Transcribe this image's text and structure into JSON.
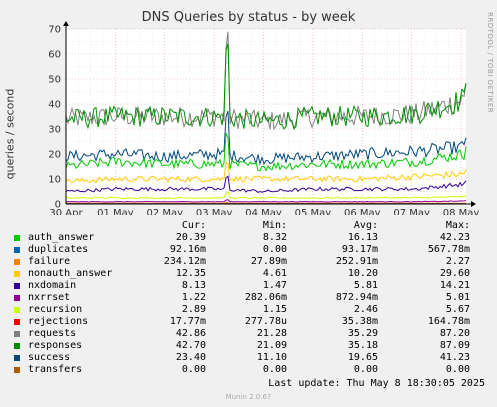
{
  "chart_data": {
    "type": "line",
    "title": "DNS Queries by status - by week",
    "ylabel": "queries / second",
    "ylim": [
      0,
      70
    ],
    "yticks": [
      "0",
      "10",
      "20",
      "30",
      "40",
      "50",
      "60",
      "70"
    ],
    "x_ticks": [
      "30 Apr",
      "01 May",
      "02 May",
      "03 May",
      "04 May",
      "05 May",
      "06 May",
      "07 May",
      "08 May"
    ],
    "grid": true,
    "series": [
      {
        "name": "auth_answer",
        "color": "#00cc00",
        "cur": "20.39",
        "min": "8.32",
        "avg": "16.13",
        "max": "42.23",
        "base": [
          15,
          17,
          16,
          16,
          15,
          16,
          16,
          17,
          20
        ]
      },
      {
        "name": "duplicates",
        "color": "#0066b3",
        "cur": "92.16m",
        "min": "0.00",
        "avg": "93.17m",
        "max": "567.78m",
        "base": [
          0.1,
          0.1,
          0.1,
          0.1,
          0.1,
          0.1,
          0.1,
          0.1,
          0.1
        ]
      },
      {
        "name": "failure",
        "color": "#ff8000",
        "cur": "234.12m",
        "min": "27.89m",
        "avg": "252.91m",
        "max": "2.27",
        "base": [
          0.3,
          0.3,
          0.3,
          0.3,
          0.3,
          0.3,
          0.3,
          0.3,
          0.3
        ]
      },
      {
        "name": "nonauth_answer",
        "color": "#ffcc00",
        "cur": "12.35",
        "min": "4.61",
        "avg": "10.20",
        "max": "29.60",
        "base": [
          9,
          10,
          10,
          10,
          10,
          10,
          10,
          11,
          12
        ]
      },
      {
        "name": "nxdomain",
        "color": "#330099",
        "cur": "8.13",
        "min": "1.47",
        "avg": "5.81",
        "max": "14.21",
        "base": [
          5,
          6,
          6,
          6,
          5,
          6,
          6,
          6,
          8
        ]
      },
      {
        "name": "nxrrset",
        "color": "#990099",
        "cur": "1.22",
        "min": "282.06m",
        "avg": "872.94m",
        "max": "5.01",
        "base": [
          0.9,
          0.9,
          0.9,
          0.9,
          0.9,
          0.9,
          0.9,
          0.9,
          1.2
        ]
      },
      {
        "name": "recursion",
        "color": "#ccff00",
        "cur": "2.89",
        "min": "1.15",
        "avg": "2.46",
        "max": "5.67",
        "base": [
          2.4,
          2.5,
          2.4,
          2.5,
          2.4,
          2.4,
          2.5,
          2.5,
          2.9
        ]
      },
      {
        "name": "rejections",
        "color": "#ff0000",
        "cur": "17.77m",
        "min": "277.78u",
        "avg": "35.38m",
        "max": "164.78m",
        "base": [
          0.04,
          0.04,
          0.04,
          0.04,
          0.04,
          0.04,
          0.04,
          0.04,
          0.04
        ]
      },
      {
        "name": "requests",
        "color": "#808080",
        "cur": "42.86",
        "min": "21.28",
        "avg": "35.29",
        "max": "87.20",
        "base": [
          34,
          35,
          35,
          35,
          33,
          35,
          35,
          36,
          42
        ]
      },
      {
        "name": "responses",
        "color": "#008f00",
        "cur": "42.70",
        "min": "21.09",
        "avg": "35.18",
        "max": "87.09",
        "base": [
          34,
          35,
          35,
          35,
          33,
          35,
          35,
          36,
          42
        ]
      },
      {
        "name": "success",
        "color": "#00487d",
        "cur": "23.40",
        "min": "11.10",
        "avg": "19.65",
        "max": "41.23",
        "base": [
          19,
          20,
          19,
          20,
          18,
          19,
          20,
          21,
          23
        ]
      },
      {
        "name": "transfers",
        "color": "#b35a00",
        "cur": "0.00",
        "min": "0.00",
        "avg": "0.00",
        "max": "0.00",
        "base": [
          0,
          0,
          0,
          0,
          0,
          0,
          0,
          0,
          0
        ]
      }
    ]
  },
  "legend_headers": {
    "cur": "Cur:",
    "min": "Min:",
    "avg": "Avg:",
    "max": "Max:"
  },
  "side_text": "RRDTOOL / TOBI OETIKER",
  "last_update": "Last update: Thu May  8 18:30:05 2025",
  "munin_version": "Munin 2.0.67"
}
